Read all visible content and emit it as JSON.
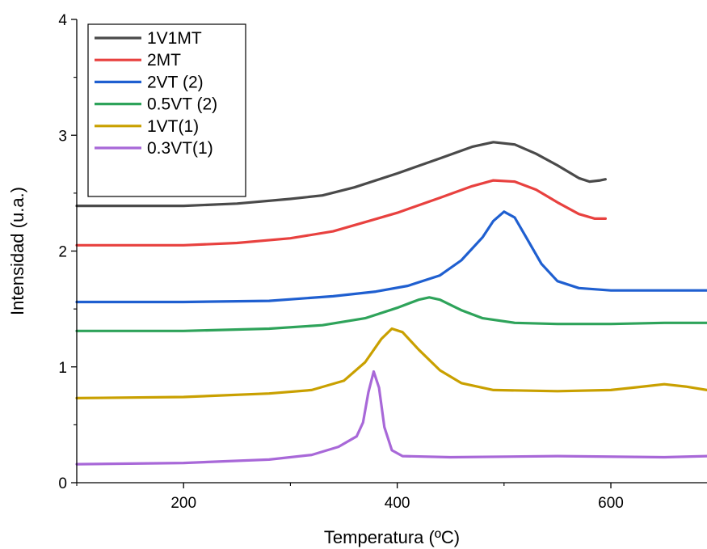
{
  "chart_data": {
    "type": "line",
    "title": "",
    "xlabel": "Temperatura (ºC)",
    "ylabel": "Intensidad (u.a.)",
    "xlim": [
      100,
      690
    ],
    "ylim": [
      0,
      4
    ],
    "xticks": [
      200,
      400,
      600
    ],
    "yticks": [
      0,
      1,
      2,
      3,
      4
    ],
    "grid": false,
    "legend_position": "top-left",
    "series": [
      {
        "name": "1V1MT",
        "color": "#4a4a4a",
        "points": [
          [
            100,
            2.39
          ],
          [
            150,
            2.39
          ],
          [
            200,
            2.39
          ],
          [
            250,
            2.41
          ],
          [
            300,
            2.45
          ],
          [
            330,
            2.48
          ],
          [
            360,
            2.55
          ],
          [
            400,
            2.67
          ],
          [
            440,
            2.8
          ],
          [
            470,
            2.9
          ],
          [
            490,
            2.94
          ],
          [
            510,
            2.92
          ],
          [
            530,
            2.84
          ],
          [
            550,
            2.74
          ],
          [
            570,
            2.63
          ],
          [
            580,
            2.6
          ],
          [
            590,
            2.61
          ],
          [
            595,
            2.62
          ]
        ]
      },
      {
        "name": "2MT",
        "color": "#e8413f",
        "points": [
          [
            100,
            2.05
          ],
          [
            150,
            2.05
          ],
          [
            200,
            2.05
          ],
          [
            250,
            2.07
          ],
          [
            300,
            2.11
          ],
          [
            340,
            2.17
          ],
          [
            370,
            2.25
          ],
          [
            400,
            2.33
          ],
          [
            440,
            2.46
          ],
          [
            470,
            2.56
          ],
          [
            490,
            2.61
          ],
          [
            510,
            2.6
          ],
          [
            530,
            2.53
          ],
          [
            550,
            2.42
          ],
          [
            570,
            2.32
          ],
          [
            585,
            2.28
          ],
          [
            595,
            2.28
          ]
        ]
      },
      {
        "name": "2VT (2)",
        "color": "#1f5fd0",
        "points": [
          [
            100,
            1.56
          ],
          [
            200,
            1.56
          ],
          [
            280,
            1.57
          ],
          [
            340,
            1.61
          ],
          [
            380,
            1.65
          ],
          [
            410,
            1.7
          ],
          [
            440,
            1.79
          ],
          [
            460,
            1.92
          ],
          [
            480,
            2.12
          ],
          [
            490,
            2.26
          ],
          [
            500,
            2.34
          ],
          [
            510,
            2.29
          ],
          [
            520,
            2.13
          ],
          [
            535,
            1.89
          ],
          [
            550,
            1.74
          ],
          [
            570,
            1.68
          ],
          [
            600,
            1.66
          ],
          [
            650,
            1.66
          ],
          [
            690,
            1.66
          ]
        ]
      },
      {
        "name": "0.5VT (2)",
        "color": "#2ea35a",
        "points": [
          [
            100,
            1.31
          ],
          [
            200,
            1.31
          ],
          [
            280,
            1.33
          ],
          [
            330,
            1.36
          ],
          [
            370,
            1.42
          ],
          [
            400,
            1.51
          ],
          [
            420,
            1.58
          ],
          [
            430,
            1.6
          ],
          [
            440,
            1.58
          ],
          [
            460,
            1.49
          ],
          [
            480,
            1.42
          ],
          [
            510,
            1.38
          ],
          [
            550,
            1.37
          ],
          [
            600,
            1.37
          ],
          [
            650,
            1.38
          ],
          [
            690,
            1.38
          ]
        ]
      },
      {
        "name": "1VT(1)",
        "color": "#c9a000",
        "points": [
          [
            100,
            0.73
          ],
          [
            200,
            0.74
          ],
          [
            280,
            0.77
          ],
          [
            320,
            0.8
          ],
          [
            350,
            0.88
          ],
          [
            370,
            1.04
          ],
          [
            385,
            1.24
          ],
          [
            395,
            1.33
          ],
          [
            405,
            1.3
          ],
          [
            420,
            1.15
          ],
          [
            440,
            0.97
          ],
          [
            460,
            0.86
          ],
          [
            490,
            0.8
          ],
          [
            550,
            0.79
          ],
          [
            600,
            0.8
          ],
          [
            630,
            0.83
          ],
          [
            650,
            0.85
          ],
          [
            670,
            0.83
          ],
          [
            690,
            0.8
          ]
        ]
      },
      {
        "name": "0.3VT(1)",
        "color": "#a868d8",
        "points": [
          [
            100,
            0.16
          ],
          [
            200,
            0.17
          ],
          [
            280,
            0.2
          ],
          [
            320,
            0.24
          ],
          [
            345,
            0.31
          ],
          [
            362,
            0.4
          ],
          [
            368,
            0.52
          ],
          [
            373,
            0.78
          ],
          [
            378,
            0.96
          ],
          [
            383,
            0.82
          ],
          [
            388,
            0.48
          ],
          [
            395,
            0.28
          ],
          [
            405,
            0.23
          ],
          [
            450,
            0.22
          ],
          [
            550,
            0.23
          ],
          [
            650,
            0.22
          ],
          [
            690,
            0.23
          ]
        ]
      }
    ]
  }
}
